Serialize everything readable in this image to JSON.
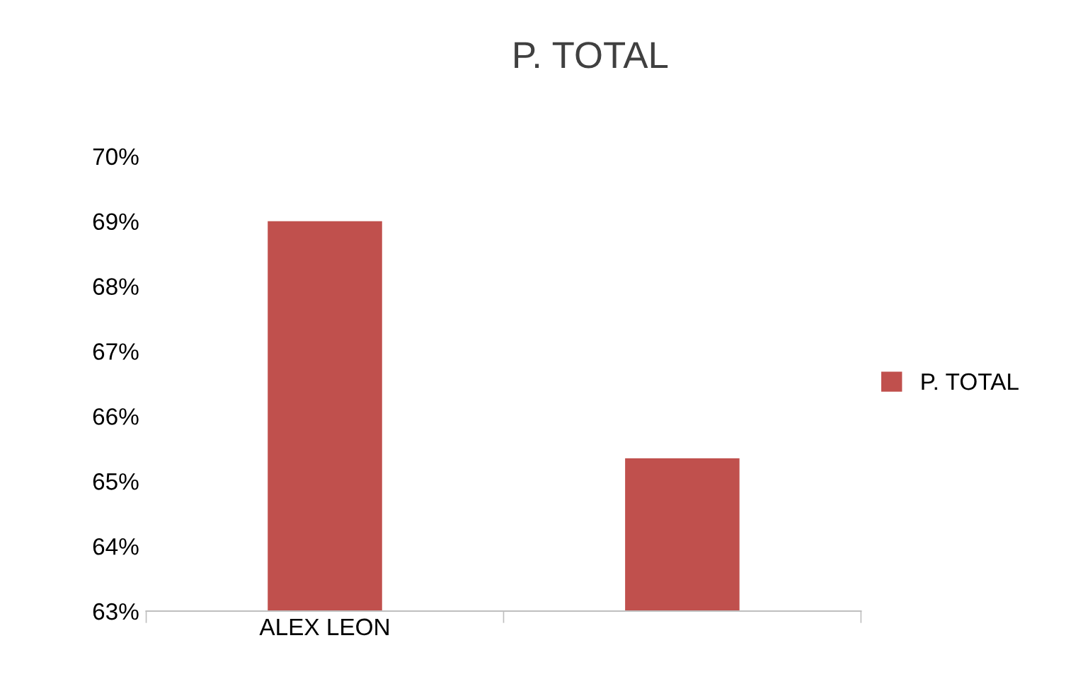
{
  "chart_data": {
    "type": "bar",
    "title": "P. TOTAL",
    "categories": [
      "ALEX LEON",
      null
    ],
    "series": [
      {
        "name": "P. TOTAL",
        "color": "#c0504d",
        "values": [
          69,
          65.35
        ]
      }
    ],
    "ylim": [
      63,
      70
    ],
    "yticks": [
      {
        "value": 63,
        "label": "63%"
      },
      {
        "value": 64,
        "label": "64%"
      },
      {
        "value": 65,
        "label": "65%"
      },
      {
        "value": 66,
        "label": "66%"
      },
      {
        "value": 67,
        "label": "67%"
      },
      {
        "value": 68,
        "label": "68%"
      },
      {
        "value": 69,
        "label": "69%"
      },
      {
        "value": 70,
        "label": "70%"
      }
    ],
    "grid": false,
    "legend": "right"
  }
}
